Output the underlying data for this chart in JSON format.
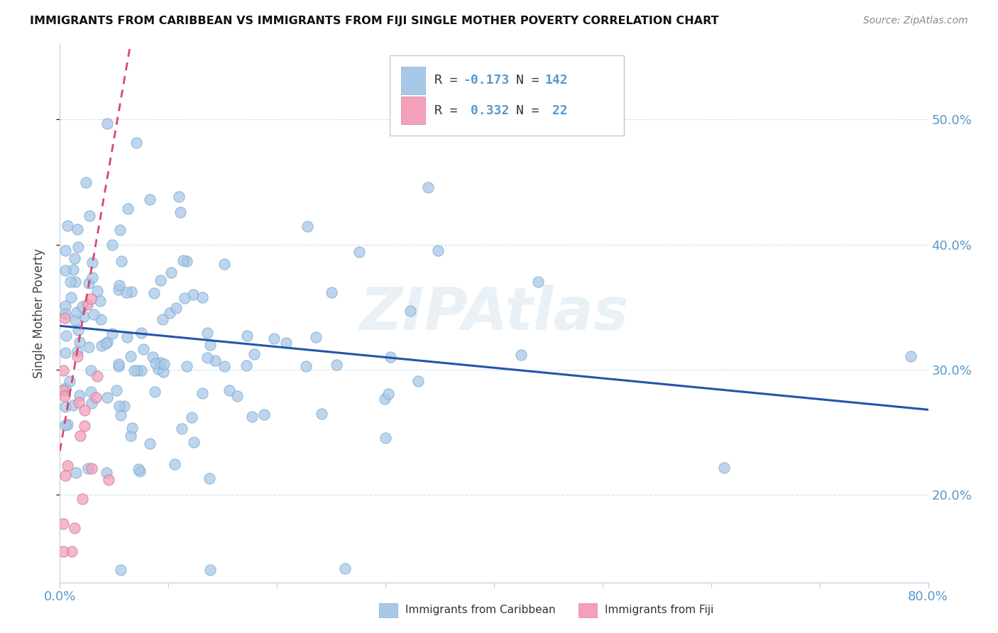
{
  "title": "IMMIGRANTS FROM CARIBBEAN VS IMMIGRANTS FROM FIJI SINGLE MOTHER POVERTY CORRELATION CHART",
  "source": "Source: ZipAtlas.com",
  "ylabel": "Single Mother Poverty",
  "R_caribbean": -0.173,
  "N_caribbean": 142,
  "R_fiji": 0.332,
  "N_fiji": 22,
  "caribbean_color": "#a8c8e8",
  "fiji_color": "#f4a0b8",
  "trend_caribbean_color": "#2255aa",
  "trend_fiji_color": "#dd4477",
  "background_color": "#ffffff",
  "xlim": [
    0.0,
    0.8
  ],
  "ylim": [
    0.13,
    0.56
  ],
  "yticks": [
    0.2,
    0.3,
    0.4,
    0.5
  ],
  "ytick_labels": [
    "20.0%",
    "30.0%",
    "40.0%",
    "50.0%"
  ],
  "xticks": [
    0.0,
    0.1,
    0.2,
    0.3,
    0.4,
    0.5,
    0.6,
    0.7,
    0.8
  ],
  "grid_color": "#ccddee",
  "spine_color": "#bbccdd",
  "tick_color": "#5599cc",
  "watermark": "ZIPAtlas",
  "watermark_color": "#dde8f0",
  "legend_label1": "R = -0.173   N = 142",
  "legend_label2": "R =  0.332   N =  22",
  "bottom_legend1": "Immigrants from Caribbean",
  "bottom_legend2": "Immigrants from Fiji",
  "carib_trend_x": [
    0.0,
    0.8
  ],
  "carib_trend_y": [
    0.335,
    0.268
  ],
  "fiji_trend_x": [
    0.0,
    0.065
  ],
  "fiji_trend_y": [
    0.235,
    0.56
  ]
}
